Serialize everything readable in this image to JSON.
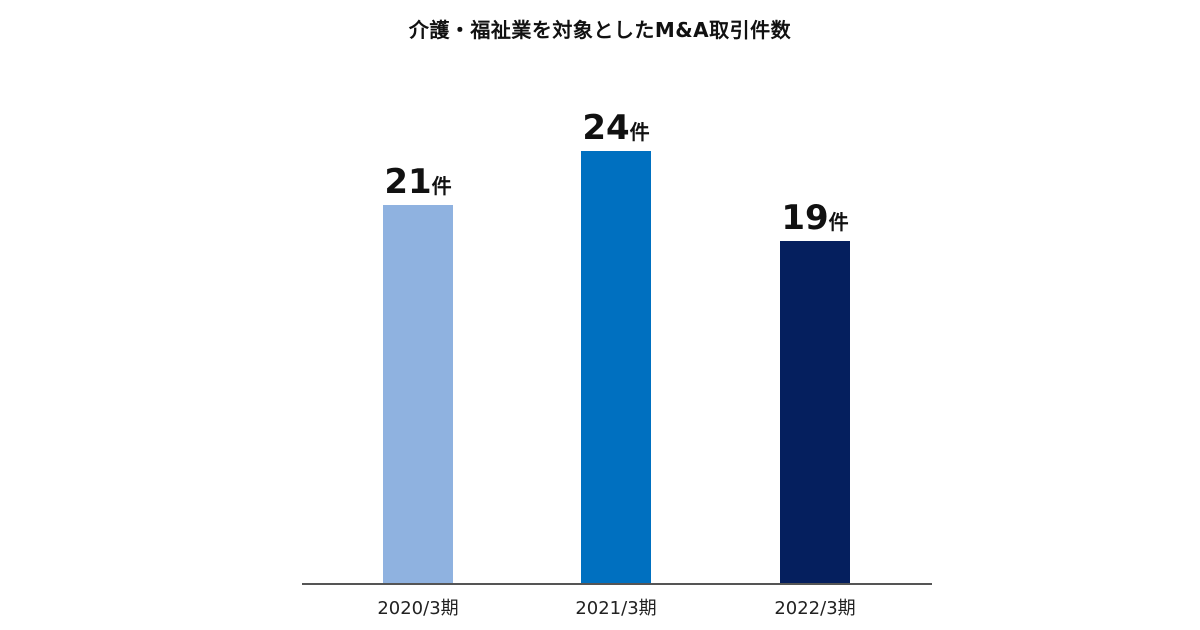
{
  "chart_data": {
    "type": "bar",
    "title": "介護・福祉業を対象としたM&A取引件数",
    "xlabel": "",
    "ylabel": "",
    "categories": [
      "2020/3期",
      "2021/3期",
      "2022/3期"
    ],
    "values": [
      21,
      24,
      19
    ],
    "value_unit": "件",
    "bar_colors": [
      "#8fb2e0",
      "#0070c0",
      "#051f5e"
    ],
    "axis_color": "#555555",
    "ylim": [
      0,
      24
    ],
    "grid": false,
    "legend": "none"
  }
}
